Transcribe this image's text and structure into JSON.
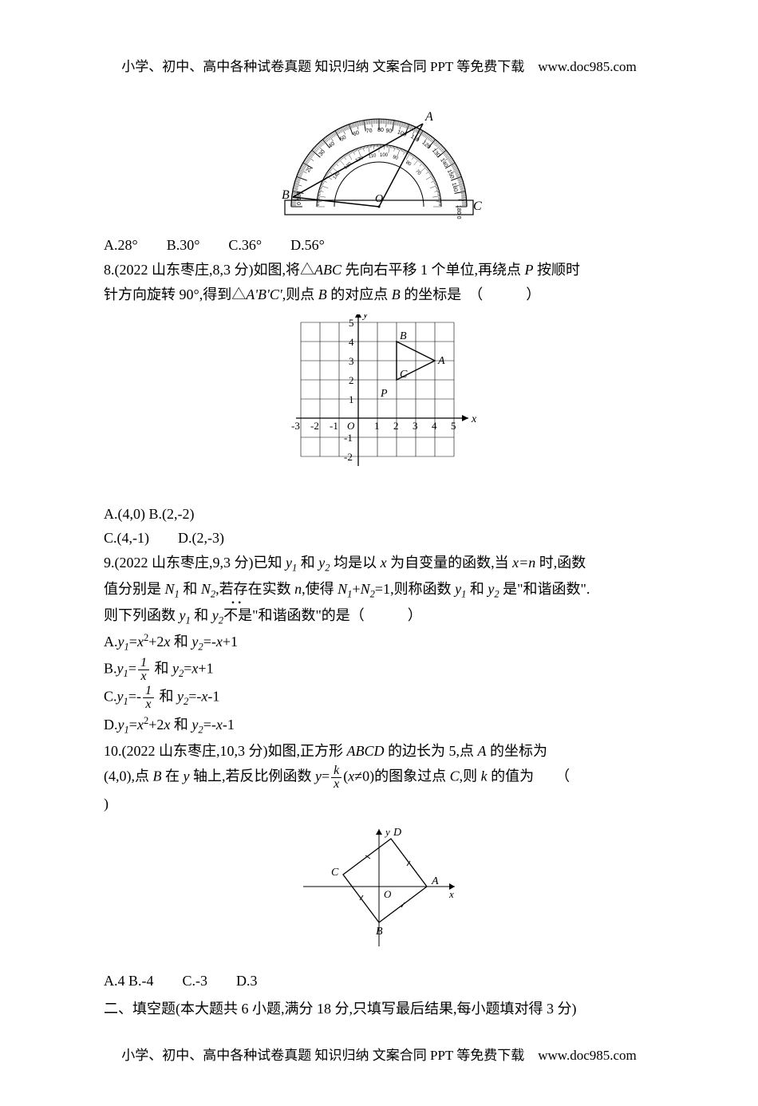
{
  "header": "小学、初中、高中各种试卷真题 知识归纳 文案合同 PPT 等免费下载　www.doc985.com",
  "footer": "小学、初中、高中各种试卷真题 知识归纳 文案合同 PPT 等免费下载　www.doc985.com",
  "q7": {
    "options": "A.28°　　B.30°　　C.36°　　D.56°",
    "protractor": {
      "labelA": "A",
      "labelB": "B",
      "labelC": "C",
      "labelO": "O",
      "outer_r": 110,
      "mid_r": 78,
      "inner_r": 56,
      "bg": "#ffffff",
      "stroke": "#000000",
      "angleA": 62,
      "angleB": 174
    }
  },
  "q8": {
    "stem1": "8.(2022 山东枣庄,8,3 分)如图,将△",
    "stem_abc": "ABC",
    "stem2": " 先向右平移 1 个单位,再绕点 ",
    "stem_p": "P",
    "stem3": " 按顺时",
    "stem4": "针方向旋转 90°,得到△",
    "stem_a1b1c1": "A'B'C'",
    "stem5": ",则点 ",
    "stem_b": "B",
    "stem6": " 的对应点 ",
    "stem_b2": "B",
    "stem7": " 的坐标是　（　　　）",
    "optA": "A.(4,0) B.(2,-2)",
    "optC": "C.(4,-1)　　D.(2,-3)",
    "grid": {
      "xmin": -3,
      "xmax": 5,
      "ymin": -2,
      "ymax": 5,
      "cell": 24,
      "points": {
        "B": [
          2,
          4
        ],
        "A": [
          4,
          3
        ],
        "C": [
          2,
          2
        ],
        "P": [
          1,
          1
        ]
      },
      "labelX": "x",
      "labelY": "y"
    }
  },
  "q9": {
    "line1a": "9.(2022 山东枣庄,9,3 分)已知 ",
    "y1": "y",
    "sub1": "1",
    "line1b": " 和 ",
    "y2": "y",
    "sub2": "2",
    "line1c": " 均是以 ",
    "x": "x",
    "line1d": " 为自变量的函数,当 ",
    "xn": "x=n",
    "line1e": " 时,函数",
    "line2a": "值分别是 ",
    "N1": "N",
    "Nsub1": "1",
    "line2b": " 和 ",
    "N2": "N",
    "Nsub2": "2",
    "line2c": ",若存在实数 ",
    "n": "n",
    "line2d": ",使得 ",
    "Neq": "N",
    "Nsub1b": "1",
    "plus": "+",
    "Nsub2b": "2",
    "eq1": "=1",
    "line2e": ",则称函数 ",
    "line2f": " 是\"和谐函数\".",
    "line3a": "则下列函数 ",
    "notis": "不是",
    "line3b": "\"和谐函数\"的是（　　　）",
    "optA_pre": "A.",
    "optA_y1": "y₁=x²+2x 和 y₂=-x+1",
    "optA_l": "A.",
    "optA_y1a": "y",
    "optA_eq": "=",
    "optA_body": "x",
    "optA_sup": "2",
    "optA_tail": "+2",
    "optA_x2": "x",
    "optA_and": " 和 ",
    "optA_y2a": "y",
    "optA_rhs": "=-",
    "optA_x3": "x",
    "optA_p1": "+1",
    "optB_l": "B.",
    "optB_and": " 和 ",
    "optB_rhs": "=",
    "optB_x2": "x",
    "optB_p1": "+1",
    "optC_l": "C.",
    "optC_and": " 和 ",
    "optC_rhs": "=-",
    "optC_x2": "x",
    "optC_m1": "-1",
    "optD_l": "D.",
    "optD_body": "=",
    "optD_x": "x",
    "optD_sup": "2",
    "optD_tail": "+2",
    "optD_x2": "x",
    "optD_and": " 和 ",
    "optD_rhs": "=-",
    "optD_x3": "x",
    "optD_m1": "-1",
    "frac1": "1",
    "fracx": "x",
    "fracm1": "-",
    "frack": "k"
  },
  "q10": {
    "line1a": "10.(2022 山东枣庄,10,3 分)如图,正方形 ",
    "ABCD": "ABCD",
    "line1b": " 的边长为 5,点 ",
    "A": "A",
    "line1c": " 的坐标为",
    "line2a": "(4,0),点 ",
    "B": "B",
    "line2b": " 在 ",
    "yax": "y",
    "line2c": " 轴上,若反比例函数 ",
    "yeq": "y",
    "eq": "=",
    "line2d": "(",
    "xneq": "x",
    "neq": "≠0)的图象过点 ",
    "C": "C",
    "line2e": ",则 ",
    "k": "k",
    "line2f": " 的值为　　（",
    "close": ")",
    "opts": "A.4  B.-4　　C.-3　　D.3",
    "fig": {
      "A": [
        60,
        0
      ],
      "B": [
        0,
        -45
      ],
      "C": [
        -45,
        15
      ],
      "D": [
        15,
        60
      ],
      "labelA": "A",
      "labelB": "B",
      "labelC": "C",
      "labelD": "D",
      "labelX": "x",
      "labelY": "y",
      "labelO": "O"
    }
  },
  "section2": "二、填空题(本大题共 6 小题,满分 18 分,只填写最后结果,每小题填对得 3 分)"
}
